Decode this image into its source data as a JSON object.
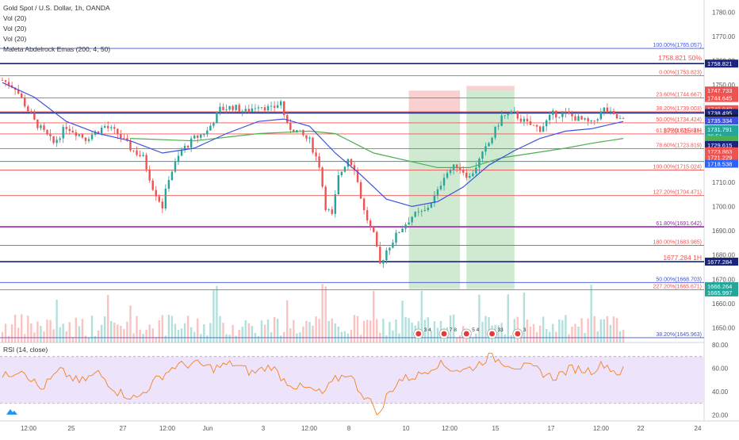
{
  "legend": {
    "title": "Gold Spot / U.S. Dollar, 1h, OANDA",
    "lines": [
      "Vol (20)",
      "Vol (20)",
      "Vol (20)",
      "Maleta Abdelrock Emas (200, 4, 50)"
    ]
  },
  "rsi_label": "RSI (14, close)",
  "colors": {
    "up": "#26a69a",
    "down": "#ef5350",
    "ema_fast": "#3f51e0",
    "ema_slow": "#4caf50",
    "red_line": "#ef5350",
    "blue_line": "#1a237e",
    "rsi": "#f58220",
    "rsi_band": "#ede3fb"
  },
  "chart_data": [
    {
      "type": "candlestick",
      "title": "Gold Spot / U.S. Dollar, 1h, OANDA",
      "x_tick_labels": [
        "12:00",
        "25",
        "27",
        "12:00",
        "Jun",
        "3",
        "12:00",
        "8",
        "10",
        "12:00",
        "15",
        "17",
        "12:00",
        "22",
        "24"
      ],
      "y_ticks": [
        1650,
        1660,
        1670,
        1680,
        1690,
        1700,
        1710,
        1720,
        1730,
        1740,
        1750,
        1760,
        1770,
        1780
      ],
      "y_tick_labels": [
        "1650.00",
        "1660.00",
        "1670.00",
        "1680.00",
        "1690.00",
        "1700.00",
        "1710.00",
        "1720.00",
        "1730.00",
        "1740.00",
        "1750.00",
        "1760.00",
        "1770.00",
        "1780.00"
      ],
      "ylim": [
        1644,
        1785
      ],
      "price_path": [
        [
          0,
          1752
        ],
        [
          4,
          1749
        ],
        [
          10,
          1735
        ],
        [
          16,
          1726
        ],
        [
          20,
          1733
        ],
        [
          26,
          1728
        ],
        [
          32,
          1733
        ],
        [
          36,
          1730
        ],
        [
          40,
          1724
        ],
        [
          44,
          1720
        ],
        [
          47,
          1708
        ],
        [
          50,
          1700
        ],
        [
          52,
          1712
        ],
        [
          56,
          1723
        ],
        [
          60,
          1728
        ],
        [
          64,
          1731
        ],
        [
          68,
          1740
        ],
        [
          72,
          1741
        ],
        [
          76,
          1739
        ],
        [
          80,
          1742
        ],
        [
          84,
          1740
        ],
        [
          87,
          1743
        ],
        [
          89,
          1733
        ],
        [
          92,
          1731
        ],
        [
          96,
          1727
        ],
        [
          99,
          1717
        ],
        [
          101,
          1700
        ],
        [
          103,
          1696
        ],
        [
          105,
          1712
        ],
        [
          108,
          1720
        ],
        [
          110,
          1716
        ],
        [
          113,
          1698
        ],
        [
          116,
          1688
        ],
        [
          118,
          1676
        ],
        [
          120,
          1682
        ],
        [
          124,
          1690
        ],
        [
          128,
          1696
        ],
        [
          132,
          1698
        ],
        [
          136,
          1706
        ],
        [
          138,
          1713
        ],
        [
          142,
          1717
        ],
        [
          146,
          1712
        ],
        [
          149,
          1719
        ],
        [
          152,
          1726
        ],
        [
          156,
          1737
        ],
        [
          160,
          1738
        ],
        [
          164,
          1734
        ],
        [
          168,
          1732
        ],
        [
          172,
          1738
        ],
        [
          176,
          1738
        ],
        [
          180,
          1736
        ],
        [
          184,
          1734
        ],
        [
          188,
          1740
        ],
        [
          191,
          1737
        ],
        [
          194,
          1735
        ]
      ],
      "candle_count": 195,
      "ema_fast": [
        [
          0,
          1751
        ],
        [
          10,
          1745
        ],
        [
          20,
          1735
        ],
        [
          30,
          1730
        ],
        [
          40,
          1727
        ],
        [
          50,
          1722
        ],
        [
          60,
          1724
        ],
        [
          70,
          1730
        ],
        [
          80,
          1735
        ],
        [
          88,
          1736
        ],
        [
          96,
          1733
        ],
        [
          104,
          1722
        ],
        [
          112,
          1713
        ],
        [
          120,
          1703
        ],
        [
          128,
          1700
        ],
        [
          136,
          1702
        ],
        [
          144,
          1708
        ],
        [
          152,
          1717
        ],
        [
          160,
          1723
        ],
        [
          168,
          1728
        ],
        [
          176,
          1731
        ],
        [
          184,
          1732
        ],
        [
          194,
          1735
        ]
      ],
      "ema_slow": [
        [
          40,
          1728
        ],
        [
          60,
          1727
        ],
        [
          80,
          1730
        ],
        [
          96,
          1731
        ],
        [
          104,
          1730
        ],
        [
          116,
          1722
        ],
        [
          126,
          1719
        ],
        [
          136,
          1716
        ],
        [
          146,
          1716
        ],
        [
          156,
          1720
        ],
        [
          166,
          1722
        ],
        [
          176,
          1724
        ],
        [
          184,
          1726
        ],
        [
          194,
          1728
        ]
      ],
      "levels": [
        {
          "price": 1765.057,
          "label": "100.00%(1765.057)",
          "kind": "blue"
        },
        {
          "price": 1758.821,
          "label": "",
          "kind": "navy"
        },
        {
          "price": 1753.823,
          "label": "0.00%(1753.823)",
          "kind": "red"
        },
        {
          "price": 1744.667,
          "label": "23.60%(1744.667)",
          "kind": "red"
        },
        {
          "price": 1739.003,
          "label": "38.20%(1739.003)",
          "kind": "red"
        },
        {
          "price": 1738.495,
          "label": "",
          "kind": "navy"
        },
        {
          "price": 1734.424,
          "label": "50.00%(1734.424)",
          "kind": "red"
        },
        {
          "price": 1729.845,
          "label": "61.80%(1729.845)",
          "kind": "red"
        },
        {
          "price": 1723.819,
          "label": "78.60%(1723.819)",
          "kind": "red"
        },
        {
          "price": 1718.538,
          "label": "",
          "kind": "teal"
        },
        {
          "price": 1715.024,
          "label": "100.00%(1715.024)",
          "kind": "red"
        },
        {
          "price": 1704.471,
          "label": "127.20%(1704.471)",
          "kind": "red"
        },
        {
          "price": 1691.642,
          "label": "61.80%(1691.642)",
          "kind": "purple"
        },
        {
          "price": 1683.985,
          "label": "180.00%(1683.985)",
          "kind": "red"
        },
        {
          "price": 1677.284,
          "label": "",
          "kind": "navy"
        },
        {
          "price": 1668.703,
          "label": "50.00%(1668.703)",
          "kind": "blue"
        },
        {
          "price": 1665.671,
          "label": "227.20%(1665.671)",
          "kind": "red"
        },
        {
          "price": 1645.963,
          "label": "38.20%(1645.963)",
          "kind": "blue"
        }
      ],
      "level_notes": [
        {
          "price": 1759.5,
          "label": "1758.821  50%"
        },
        {
          "price": 1729.615,
          "label": "1729.615  1H"
        },
        {
          "price": 1677.284,
          "label": "1677.284  1H"
        }
      ],
      "positions": [
        {
          "x_start": 127,
          "x_end": 143,
          "stop_top": 1747.7,
          "entry": 1738.5,
          "target_bottom": 1666.0
        },
        {
          "x_start": 145,
          "x_end": 160,
          "stop_top": 1747.7,
          "entry": 1747.7,
          "target_bottom": 1666.0
        }
      ],
      "price_tags": [
        {
          "price": 1758.821,
          "text": "1758.821",
          "color": "#1a237e"
        },
        {
          "price": 1747.733,
          "text": "1747.733",
          "color": "#ef5350"
        },
        {
          "price": 1744.645,
          "text": "1744.645",
          "color": "#ef5350"
        },
        {
          "price": 1740.043,
          "text": "1740.043",
          "color": "#ef5350"
        },
        {
          "price": 1738.495,
          "text": "1738.495",
          "color": "#1a237e"
        },
        {
          "price": 1736.177,
          "text": "1736.177",
          "color": "#131722"
        },
        {
          "price": 1735.334,
          "text": "1735.334",
          "color": "#3f51e0"
        },
        {
          "price": 1731.791,
          "text": "1731.791",
          "color": "#26a69a"
        },
        {
          "price": 1729.0,
          "text": "36:51",
          "color": "#26a69a"
        },
        {
          "price": 1727.5,
          "text": "",
          "color": "#4caf50"
        },
        {
          "price": 1725.3,
          "text": "1729.615",
          "color": "#1a237e"
        },
        {
          "price": 1722.7,
          "text": "1723.863",
          "color": "#ef5350"
        },
        {
          "price": 1720.2,
          "text": "1721.229",
          "color": "#ef5350"
        },
        {
          "price": 1717.6,
          "text": "1718.538",
          "color": "#2962ff"
        },
        {
          "price": 1677.284,
          "text": "1677.284",
          "color": "#1a237e"
        },
        {
          "price": 1667.2,
          "text": "1666.264",
          "color": "#26a69a"
        },
        {
          "price": 1664.6,
          "text": "1665.997",
          "color": "#26a69a"
        }
      ],
      "event_badges": [
        {
          "x": 130,
          "text": "3 4"
        },
        {
          "x": 138,
          "text": "7 8"
        },
        {
          "x": 145,
          "text": "5 4"
        },
        {
          "x": 153,
          "text": "33"
        },
        {
          "x": 161,
          "text": "3"
        }
      ]
    },
    {
      "type": "line",
      "title": "RSI (14, close)",
      "ylim": [
        15,
        82
      ],
      "y_ticks": [
        20,
        40,
        60,
        80
      ],
      "y_tick_labels": [
        "20.00",
        "40.00",
        "60.00",
        "80.00"
      ],
      "band": [
        30,
        70
      ],
      "values_path": [
        [
          0,
          52
        ],
        [
          6,
          60
        ],
        [
          12,
          42
        ],
        [
          18,
          58
        ],
        [
          24,
          48
        ],
        [
          30,
          56
        ],
        [
          36,
          40
        ],
        [
          42,
          34
        ],
        [
          48,
          50
        ],
        [
          54,
          62
        ],
        [
          60,
          64
        ],
        [
          66,
          60
        ],
        [
          72,
          64
        ],
        [
          78,
          56
        ],
        [
          84,
          62
        ],
        [
          88,
          50
        ],
        [
          92,
          44
        ],
        [
          96,
          42
        ],
        [
          100,
          38
        ],
        [
          104,
          50
        ],
        [
          108,
          56
        ],
        [
          112,
          40
        ],
        [
          116,
          28
        ],
        [
          118,
          20
        ],
        [
          120,
          36
        ],
        [
          124,
          50
        ],
        [
          130,
          54
        ],
        [
          136,
          64
        ],
        [
          140,
          60
        ],
        [
          144,
          58
        ],
        [
          148,
          62
        ],
        [
          152,
          70
        ],
        [
          156,
          66
        ],
        [
          160,
          62
        ],
        [
          166,
          60
        ],
        [
          172,
          52
        ],
        [
          178,
          60
        ],
        [
          184,
          58
        ],
        [
          188,
          64
        ],
        [
          192,
          56
        ],
        [
          194,
          58
        ]
      ]
    }
  ]
}
